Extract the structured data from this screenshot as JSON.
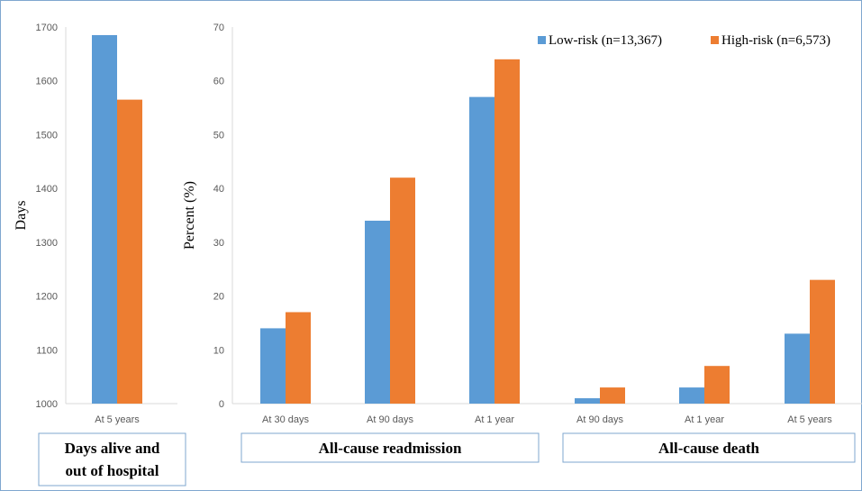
{
  "colors": {
    "low": "#5b9bd5",
    "high": "#ed7d31"
  },
  "legend": {
    "low": "Low-risk (n=13,367)",
    "high": "High-risk (n=6,573)"
  },
  "chart_data": [
    {
      "type": "bar",
      "ylabel": "Days",
      "ylim": [
        1000,
        1700
      ],
      "yticks": [
        1000,
        1100,
        1200,
        1300,
        1400,
        1500,
        1600,
        1700
      ],
      "categories": [
        "At 5 years"
      ],
      "series": [
        {
          "name": "Low-risk (n=13,367)",
          "values": [
            1685
          ]
        },
        {
          "name": "High-risk (n=6,573)",
          "values": [
            1565
          ]
        }
      ],
      "group_label": [
        "Days alive and",
        "out of hospital"
      ]
    },
    {
      "type": "bar",
      "ylabel": "Percent (%)",
      "ylim": [
        0,
        70
      ],
      "yticks": [
        0,
        10,
        20,
        30,
        40,
        50,
        60,
        70
      ],
      "categories": [
        "At 30 days",
        "At 90 days",
        "At 1 year",
        "At 90 days",
        "At 1 year",
        "At 5 years"
      ],
      "series": [
        {
          "name": "Low-risk (n=13,367)",
          "values": [
            14,
            34,
            57,
            1,
            3,
            13
          ]
        },
        {
          "name": "High-risk (n=6,573)",
          "values": [
            17,
            42,
            64,
            3,
            7,
            23
          ]
        }
      ],
      "groups": [
        "All-cause readmission",
        "All-cause death"
      ],
      "legend_position": "top-right"
    }
  ]
}
